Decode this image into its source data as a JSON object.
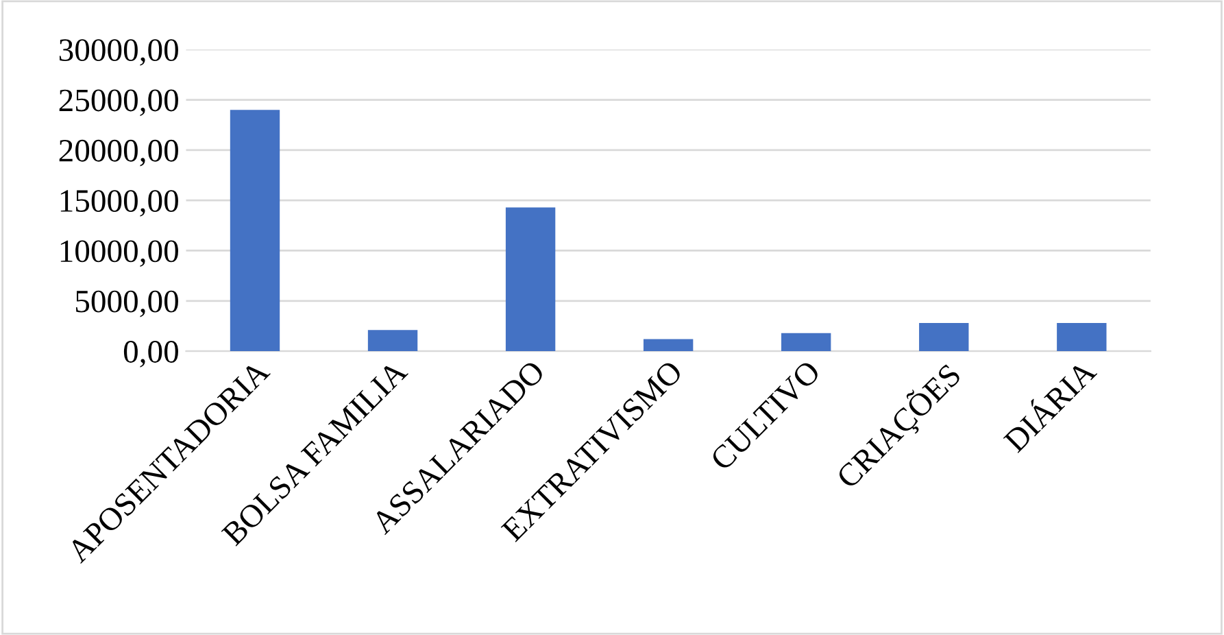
{
  "chart_data": {
    "type": "bar",
    "categories": [
      "APOSENTADORIA",
      "BOLSA FAMILIA",
      "ASSALARIADO",
      "EXTRATIVISMO",
      "CULTIVO",
      "CRIAÇÕES",
      "DIÁRIA"
    ],
    "values": [
      24000,
      2100,
      14300,
      1200,
      1800,
      2800,
      2800
    ],
    "color": "#4472c4",
    "ylim": [
      0,
      30000
    ],
    "yticks": [
      {
        "value": 0,
        "label": "0,00"
      },
      {
        "value": 5000,
        "label": "5000,00"
      },
      {
        "value": 10000,
        "label": "10000,00"
      },
      {
        "value": 15000,
        "label": "15000,00"
      },
      {
        "value": 20000,
        "label": "20000,00"
      },
      {
        "value": 25000,
        "label": "25000,00"
      },
      {
        "value": 30000,
        "label": "30000,00"
      }
    ],
    "grid": "y",
    "legend": false
  }
}
